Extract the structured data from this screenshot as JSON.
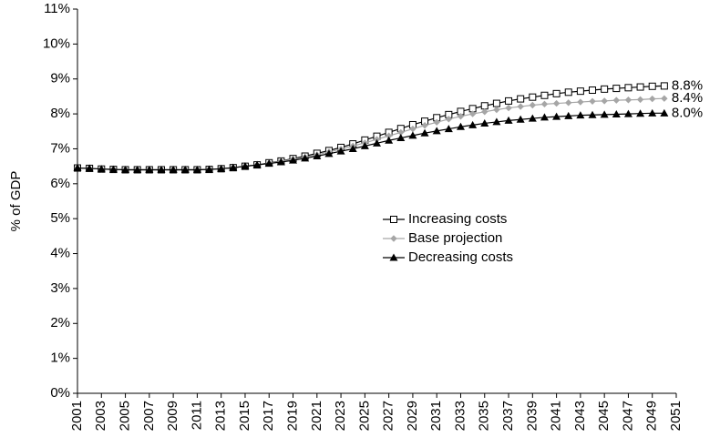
{
  "chart_data": {
    "type": "line",
    "ylabel": "% of GDP",
    "x": [
      2001,
      2002,
      2003,
      2004,
      2005,
      2006,
      2007,
      2008,
      2009,
      2010,
      2011,
      2012,
      2013,
      2014,
      2015,
      2016,
      2017,
      2018,
      2019,
      2020,
      2021,
      2022,
      2023,
      2024,
      2025,
      2026,
      2027,
      2028,
      2029,
      2030,
      2031,
      2032,
      2033,
      2034,
      2035,
      2036,
      2037,
      2038,
      2039,
      2040,
      2041,
      2042,
      2043,
      2044,
      2045,
      2046,
      2047,
      2048,
      2049,
      2050
    ],
    "xlim": [
      2001,
      2051
    ],
    "xticks": [
      2001,
      2003,
      2005,
      2007,
      2009,
      2011,
      2013,
      2015,
      2017,
      2019,
      2021,
      2023,
      2025,
      2027,
      2029,
      2031,
      2033,
      2035,
      2037,
      2039,
      2041,
      2043,
      2045,
      2047,
      2049,
      2051
    ],
    "ylim": [
      0,
      11
    ],
    "yticks": [
      {
        "value": 0,
        "label": "0%"
      },
      {
        "value": 1,
        "label": "1%"
      },
      {
        "value": 2,
        "label": "2%"
      },
      {
        "value": 3,
        "label": "3%"
      },
      {
        "value": 4,
        "label": "4%"
      },
      {
        "value": 5,
        "label": "5%"
      },
      {
        "value": 6,
        "label": "6%"
      },
      {
        "value": 7,
        "label": "7%"
      },
      {
        "value": 8,
        "label": "8%"
      },
      {
        "value": 9,
        "label": "9%"
      },
      {
        "value": 10,
        "label": "10%"
      },
      {
        "value": 11,
        "label": "11%"
      }
    ],
    "grid": false,
    "series": [
      {
        "name": "Increasing costs",
        "color": "#000000",
        "marker": "open-square",
        "values": [
          6.45,
          6.44,
          6.42,
          6.41,
          6.4,
          6.4,
          6.4,
          6.4,
          6.4,
          6.4,
          6.4,
          6.41,
          6.43,
          6.46,
          6.5,
          6.54,
          6.6,
          6.65,
          6.72,
          6.79,
          6.87,
          6.95,
          7.04,
          7.14,
          7.25,
          7.36,
          7.47,
          7.58,
          7.69,
          7.79,
          7.89,
          7.98,
          8.07,
          8.15,
          8.23,
          8.3,
          8.37,
          8.43,
          8.48,
          8.53,
          8.58,
          8.62,
          8.65,
          8.68,
          8.71,
          8.73,
          8.75,
          8.77,
          8.79,
          8.8
        ],
        "value_labels": [
          null,
          null,
          null,
          null,
          null,
          null,
          null,
          null,
          null,
          null,
          null,
          null,
          null,
          null,
          null,
          null,
          null,
          null,
          null,
          null,
          null,
          null,
          null,
          null,
          null,
          null,
          null,
          null,
          null,
          null,
          null,
          null,
          null,
          null,
          null,
          null,
          null,
          null,
          null,
          null,
          null,
          null,
          null,
          null,
          null,
          null,
          null,
          null,
          null,
          "8.8%"
        ]
      },
      {
        "name": "Base projection",
        "color": "#a6a6a6",
        "marker": "diamond",
        "values": [
          6.45,
          6.44,
          6.42,
          6.41,
          6.4,
          6.4,
          6.4,
          6.4,
          6.4,
          6.4,
          6.4,
          6.41,
          6.43,
          6.46,
          6.5,
          6.54,
          6.59,
          6.64,
          6.7,
          6.76,
          6.83,
          6.91,
          6.99,
          7.08,
          7.17,
          7.27,
          7.37,
          7.47,
          7.57,
          7.67,
          7.76,
          7.85,
          7.93,
          8.0,
          8.06,
          8.12,
          8.17,
          8.21,
          8.25,
          8.28,
          8.3,
          8.32,
          8.34,
          8.36,
          8.37,
          8.39,
          8.4,
          8.41,
          8.43,
          8.44
        ],
        "value_labels": [
          null,
          null,
          null,
          null,
          null,
          null,
          null,
          null,
          null,
          null,
          null,
          null,
          null,
          null,
          null,
          null,
          null,
          null,
          null,
          null,
          null,
          null,
          null,
          null,
          null,
          null,
          null,
          null,
          null,
          null,
          null,
          null,
          null,
          null,
          null,
          null,
          null,
          null,
          null,
          null,
          null,
          null,
          null,
          null,
          null,
          null,
          null,
          null,
          null,
          "8.4%"
        ]
      },
      {
        "name": "Decreasing costs",
        "color": "#000000",
        "marker": "triangle",
        "values": [
          6.45,
          6.44,
          6.42,
          6.41,
          6.4,
          6.4,
          6.4,
          6.4,
          6.4,
          6.4,
          6.4,
          6.41,
          6.43,
          6.46,
          6.5,
          6.54,
          6.58,
          6.62,
          6.67,
          6.73,
          6.79,
          6.86,
          6.93,
          7.0,
          7.08,
          7.16,
          7.24,
          7.31,
          7.38,
          7.45,
          7.51,
          7.57,
          7.63,
          7.68,
          7.73,
          7.77,
          7.81,
          7.84,
          7.87,
          7.9,
          7.92,
          7.94,
          7.96,
          7.97,
          7.98,
          7.99,
          8.0,
          8.01,
          8.02,
          8.02
        ],
        "value_labels": [
          null,
          null,
          null,
          null,
          null,
          null,
          null,
          null,
          null,
          null,
          null,
          null,
          null,
          null,
          null,
          null,
          null,
          null,
          null,
          null,
          null,
          null,
          null,
          null,
          null,
          null,
          null,
          null,
          null,
          null,
          null,
          null,
          null,
          null,
          null,
          null,
          null,
          null,
          null,
          null,
          null,
          null,
          null,
          null,
          null,
          null,
          null,
          null,
          null,
          "8.0%"
        ]
      }
    ]
  }
}
